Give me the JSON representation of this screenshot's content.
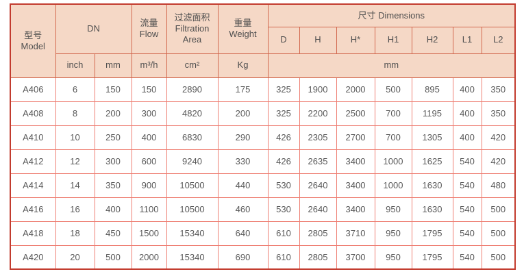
{
  "colors": {
    "page_bg": "#ffffff",
    "header_bg": "#f5d8c6",
    "outer_border": "#c23b2e",
    "header_border": "#d2674d",
    "body_border": "#ee7e72",
    "header_text": "#4f4f4f",
    "body_text": "#595959"
  },
  "table": {
    "header": {
      "model_cn": "型号",
      "model_en": "Model",
      "dn": "DN",
      "flow_cn": "流量",
      "flow_en": "Flow",
      "filtration_cn": "过滤面积",
      "filtration_en_1": "Filtration",
      "filtration_en_2": "Area",
      "weight_cn": "重量",
      "weight_en": "Weight",
      "dimensions": "尺寸 Dimensions",
      "dim_cols": [
        "D",
        "H",
        "H*",
        "H1",
        "H2",
        "L1",
        "L2"
      ],
      "unit_inch": "inch",
      "unit_mm": "mm",
      "unit_flow": "m³/h",
      "unit_area": "cm²",
      "unit_weight": "Kg",
      "unit_dim_mm": "mm"
    },
    "rows": [
      [
        "A406",
        "6",
        "150",
        "150",
        "2890",
        "175",
        "325",
        "1900",
        "2000",
        "500",
        "895",
        "400",
        "350"
      ],
      [
        "A408",
        "8",
        "200",
        "300",
        "4820",
        "200",
        "325",
        "2200",
        "2500",
        "700",
        "1195",
        "400",
        "350"
      ],
      [
        "A410",
        "10",
        "250",
        "400",
        "6830",
        "290",
        "426",
        "2305",
        "2700",
        "700",
        "1305",
        "400",
        "420"
      ],
      [
        "A412",
        "12",
        "300",
        "600",
        "9240",
        "330",
        "426",
        "2635",
        "3400",
        "1000",
        "1625",
        "540",
        "420"
      ],
      [
        "A414",
        "14",
        "350",
        "900",
        "10500",
        "440",
        "530",
        "2640",
        "3400",
        "1000",
        "1630",
        "540",
        "480"
      ],
      [
        "A416",
        "16",
        "400",
        "1100",
        "10500",
        "460",
        "530",
        "2640",
        "3400",
        "950",
        "1630",
        "540",
        "500"
      ],
      [
        "A418",
        "18",
        "450",
        "1500",
        "15340",
        "640",
        "610",
        "2805",
        "3710",
        "950",
        "1795",
        "540",
        "500"
      ],
      [
        "A420",
        "20",
        "500",
        "2000",
        "15340",
        "690",
        "610",
        "2805",
        "3700",
        "950",
        "1795",
        "540",
        "500"
      ]
    ]
  }
}
